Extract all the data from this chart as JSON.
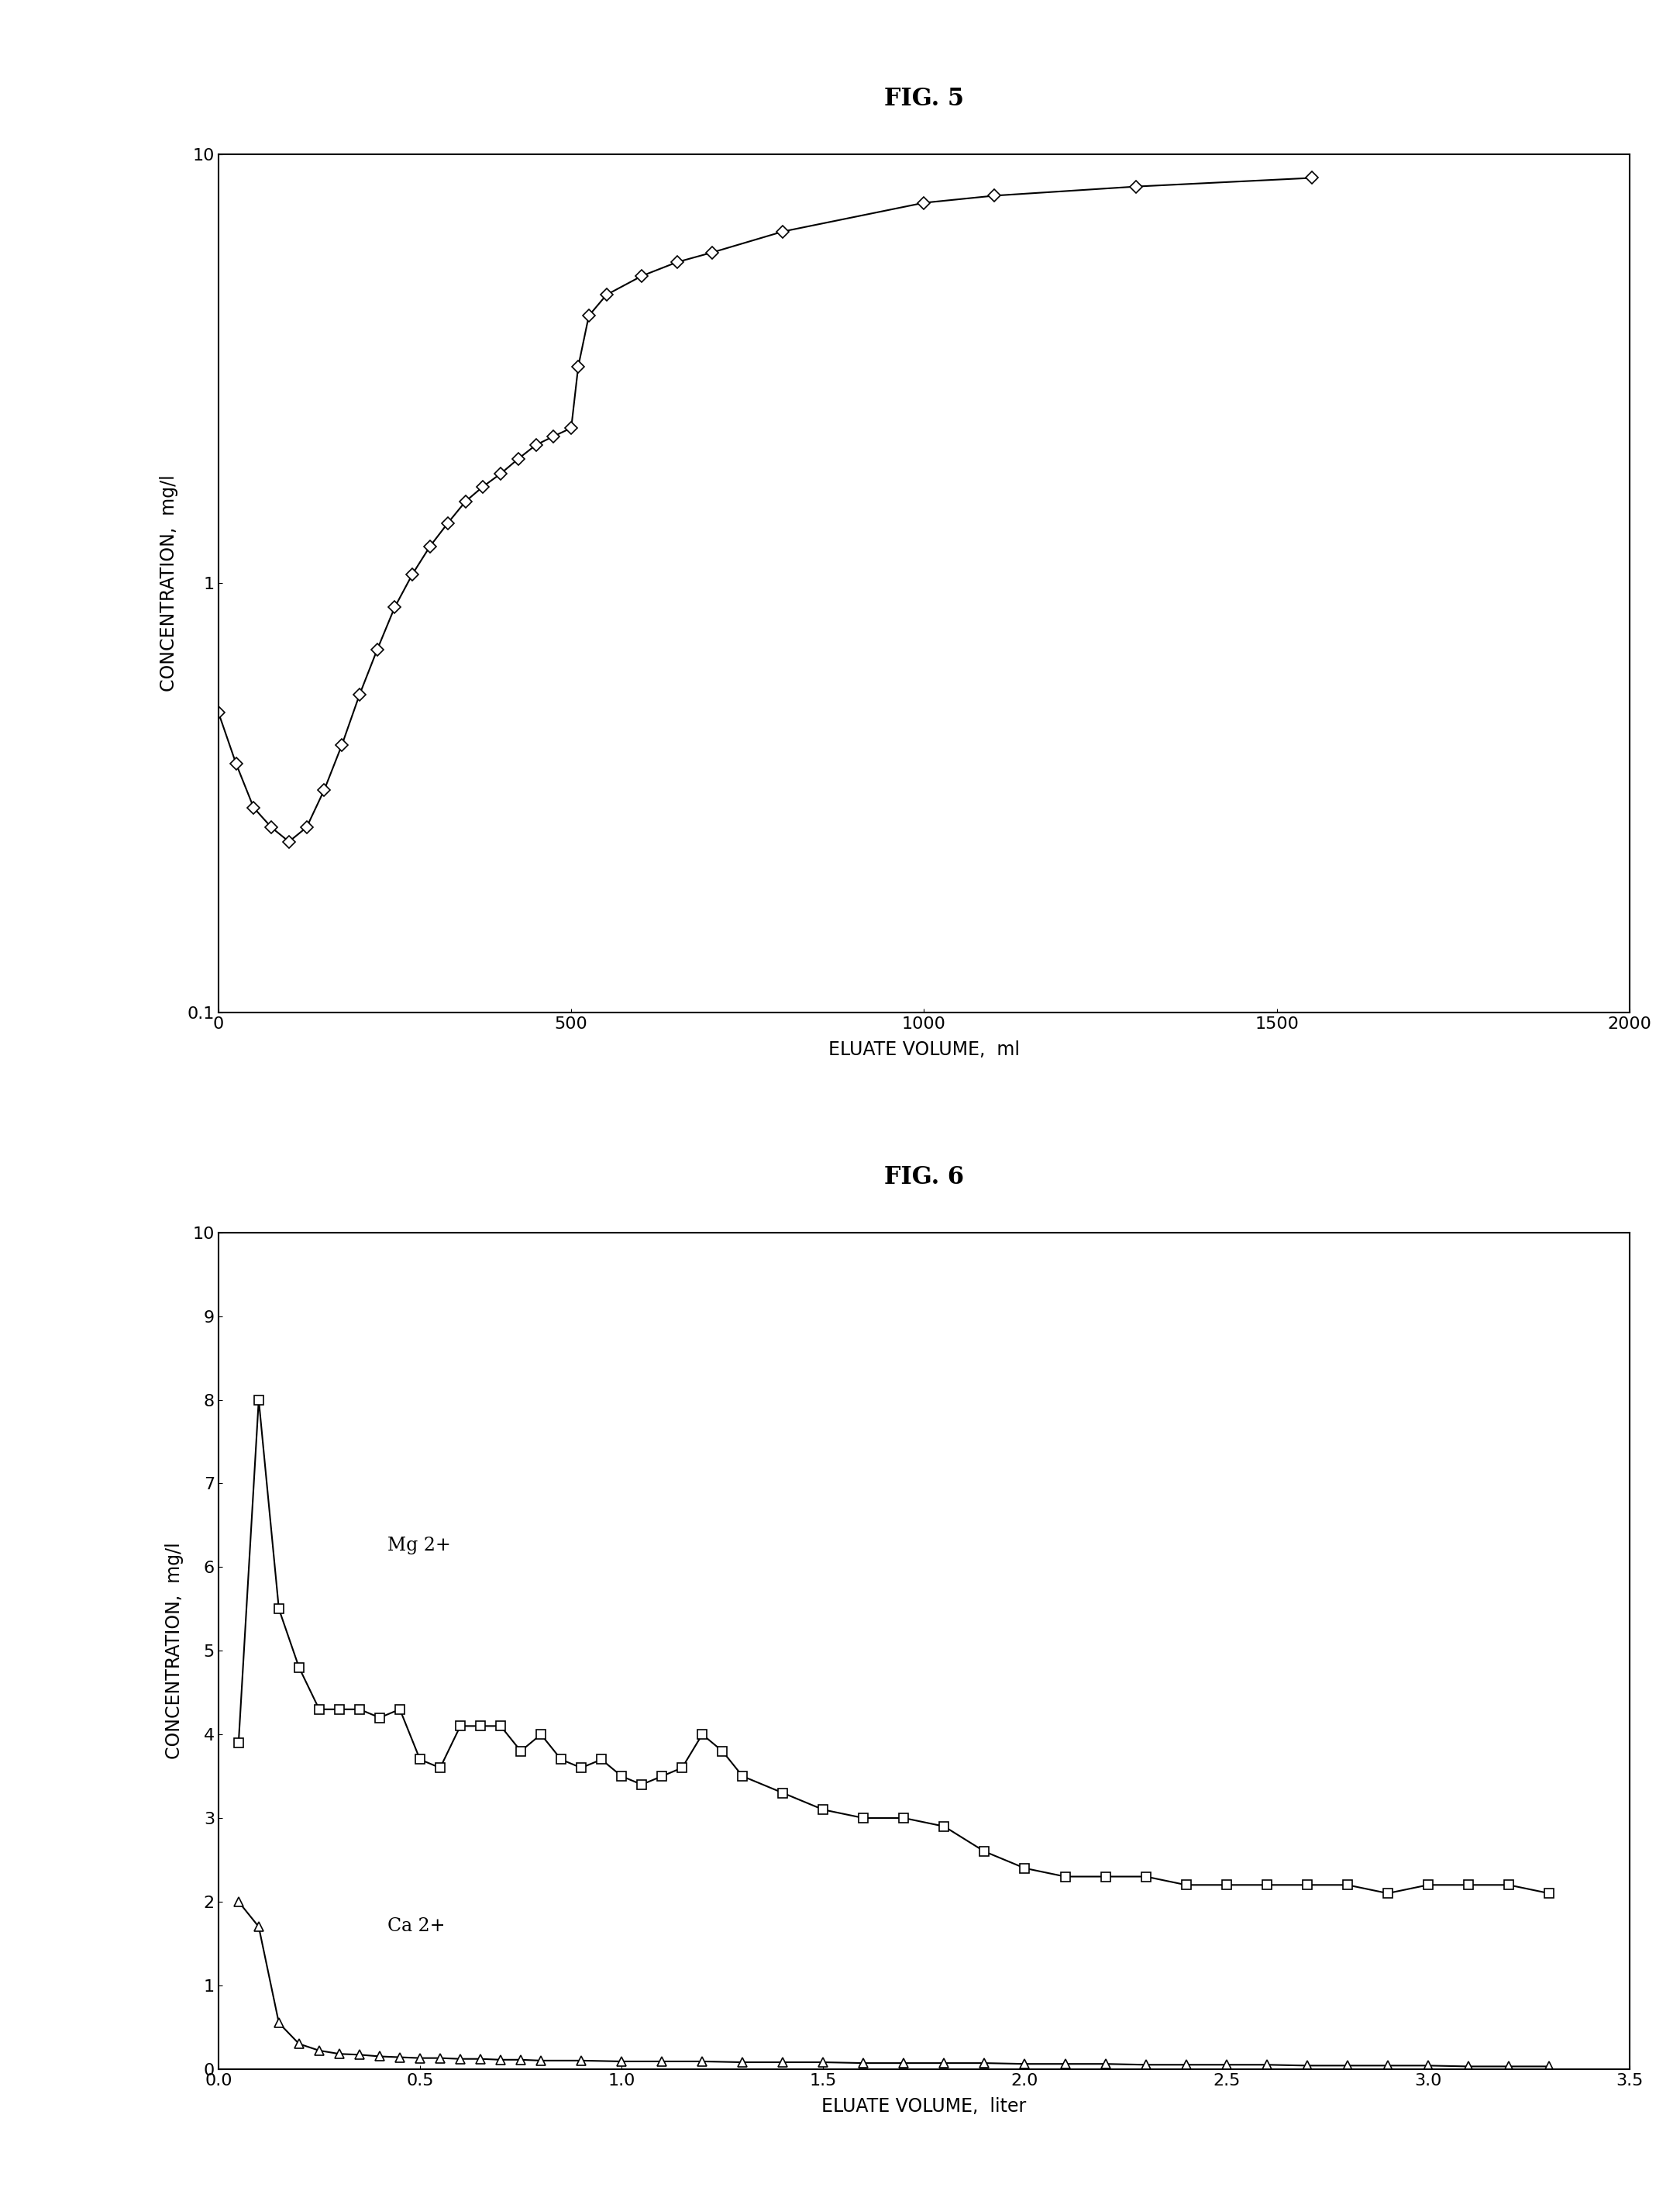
{
  "fig5_title": "FIG. 5",
  "fig6_title": "FIG. 6",
  "fig5_xlabel": "ELUATE VOLUME,  ml",
  "fig5_ylabel": "CONCENTRATION,  mg/l",
  "fig6_xlabel": "ELUATE VOLUME,  liter",
  "fig6_ylabel": "CONCENTRATION,  mg/l",
  "fig5_x": [
    0,
    25,
    50,
    75,
    100,
    125,
    150,
    175,
    200,
    225,
    250,
    275,
    300,
    325,
    350,
    375,
    400,
    425,
    450,
    475,
    500,
    510,
    525,
    550,
    600,
    650,
    700,
    800,
    1000,
    1100,
    1300,
    1550
  ],
  "fig5_y": [
    0.5,
    0.38,
    0.3,
    0.27,
    0.25,
    0.27,
    0.33,
    0.42,
    0.55,
    0.7,
    0.88,
    1.05,
    1.22,
    1.38,
    1.55,
    1.68,
    1.8,
    1.95,
    2.1,
    2.2,
    2.3,
    3.2,
    4.2,
    4.7,
    5.2,
    5.6,
    5.9,
    6.6,
    7.7,
    8.0,
    8.4,
    8.8
  ],
  "fig5_xlim": [
    0,
    2000
  ],
  "fig5_ylim": [
    0.1,
    10
  ],
  "fig5_xticks": [
    0,
    500,
    1000,
    1500,
    2000
  ],
  "mg_x": [
    0.05,
    0.1,
    0.15,
    0.2,
    0.25,
    0.3,
    0.35,
    0.4,
    0.45,
    0.5,
    0.55,
    0.6,
    0.65,
    0.7,
    0.75,
    0.8,
    0.85,
    0.9,
    0.95,
    1.0,
    1.05,
    1.1,
    1.15,
    1.2,
    1.25,
    1.3,
    1.4,
    1.5,
    1.6,
    1.7,
    1.8,
    1.9,
    2.0,
    2.1,
    2.2,
    2.3,
    2.4,
    2.5,
    2.6,
    2.7,
    2.8,
    2.9,
    3.0,
    3.1,
    3.2,
    3.3
  ],
  "mg_y": [
    3.9,
    8.0,
    5.5,
    4.8,
    4.3,
    4.3,
    4.3,
    4.2,
    4.3,
    3.7,
    3.6,
    4.1,
    4.1,
    4.1,
    3.8,
    4.0,
    3.7,
    3.6,
    3.7,
    3.5,
    3.4,
    3.5,
    3.6,
    4.0,
    3.8,
    3.5,
    3.3,
    3.1,
    3.0,
    3.0,
    2.9,
    2.6,
    2.4,
    2.3,
    2.3,
    2.3,
    2.2,
    2.2,
    2.2,
    2.2,
    2.2,
    2.1,
    2.2,
    2.2,
    2.2,
    2.1
  ],
  "ca_x": [
    0.05,
    0.1,
    0.15,
    0.2,
    0.25,
    0.3,
    0.35,
    0.4,
    0.45,
    0.5,
    0.55,
    0.6,
    0.65,
    0.7,
    0.75,
    0.8,
    0.9,
    1.0,
    1.1,
    1.2,
    1.3,
    1.4,
    1.5,
    1.6,
    1.7,
    1.8,
    1.9,
    2.0,
    2.1,
    2.2,
    2.3,
    2.4,
    2.5,
    2.6,
    2.7,
    2.8,
    2.9,
    3.0,
    3.1,
    3.2,
    3.3
  ],
  "ca_y": [
    2.0,
    1.7,
    0.55,
    0.3,
    0.22,
    0.18,
    0.17,
    0.15,
    0.14,
    0.13,
    0.13,
    0.12,
    0.12,
    0.11,
    0.11,
    0.1,
    0.1,
    0.09,
    0.09,
    0.09,
    0.08,
    0.08,
    0.08,
    0.07,
    0.07,
    0.07,
    0.07,
    0.06,
    0.06,
    0.06,
    0.05,
    0.05,
    0.05,
    0.05,
    0.04,
    0.04,
    0.04,
    0.04,
    0.03,
    0.03,
    0.03
  ],
  "fig6_xlim": [
    0,
    3.5
  ],
  "fig6_ylim": [
    0,
    10
  ],
  "fig6_xticks": [
    0.0,
    0.5,
    1.0,
    1.5,
    2.0,
    2.5,
    3.0,
    3.5
  ],
  "fig6_yticks": [
    0,
    1,
    2,
    3,
    4,
    5,
    6,
    7,
    8,
    9,
    10
  ],
  "mg_label": "Mg 2+",
  "ca_label": "Ca 2+",
  "bg_color": "#ffffff",
  "line_color": "#000000",
  "title_fontsize": 22,
  "label_fontsize": 17,
  "tick_fontsize": 16,
  "annot_fontsize": 17
}
